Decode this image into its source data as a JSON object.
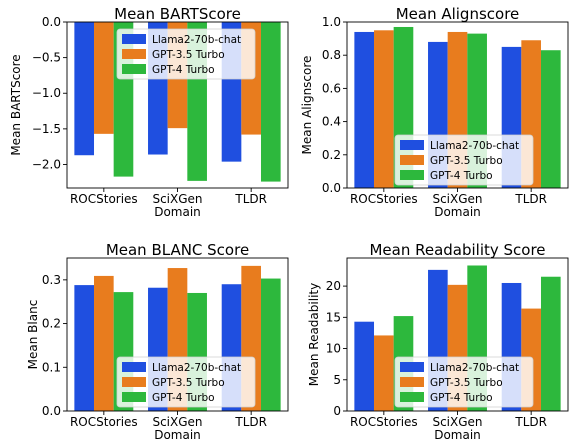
{
  "series_names": [
    "Llama2-70b-chat",
    "GPT-3.5 Turbo",
    "GPT-4 Turbo"
  ],
  "series_colors": [
    "#1f4fe0",
    "#e87c1e",
    "#2db83d"
  ],
  "chart_data": [
    {
      "type": "bar",
      "title": "Mean BARTScore",
      "xlabel": "Domain",
      "ylabel": "Mean BARTScore",
      "categories": [
        "ROCStories",
        "SciXGen",
        "TLDR"
      ],
      "ylim": [
        -2.33,
        0.0
      ],
      "yticks": [
        0.0,
        -0.5,
        -1.0,
        -1.5,
        -2.0
      ],
      "ytick_labels": [
        "0.0",
        "−0.5",
        "−1.0",
        "−1.5",
        "−2.0"
      ],
      "legend": "top-right",
      "series": [
        {
          "name": "Llama2-70b-chat",
          "values": [
            -1.87,
            -1.86,
            -1.96
          ]
        },
        {
          "name": "GPT-3.5 Turbo",
          "values": [
            -1.57,
            -1.49,
            -1.58
          ]
        },
        {
          "name": "GPT-4 Turbo",
          "values": [
            -2.17,
            -2.23,
            -2.24
          ]
        }
      ]
    },
    {
      "type": "bar",
      "title": "Mean Alignscore",
      "xlabel": "Domain",
      "ylabel": "Mean Alignscore",
      "categories": [
        "ROCStories",
        "SciXGen",
        "TLDR"
      ],
      "ylim": [
        0.0,
        1.0
      ],
      "yticks": [
        0.0,
        0.2,
        0.4,
        0.6,
        0.8,
        1.0
      ],
      "ytick_labels": [
        "0.0",
        "0.2",
        "0.4",
        "0.6",
        "0.8",
        "1.0"
      ],
      "legend": "bottom-right",
      "series": [
        {
          "name": "Llama2-70b-chat",
          "values": [
            0.94,
            0.88,
            0.85
          ]
        },
        {
          "name": "GPT-3.5 Turbo",
          "values": [
            0.95,
            0.94,
            0.89
          ]
        },
        {
          "name": "GPT-4 Turbo",
          "values": [
            0.97,
            0.93,
            0.83
          ]
        }
      ]
    },
    {
      "type": "bar",
      "title": "Mean BLANC Score",
      "xlabel": "Domain",
      "ylabel": "Mean Blanc",
      "categories": [
        "ROCStories",
        "SciXGen",
        "TLDR"
      ],
      "ylim": [
        0.0,
        0.35
      ],
      "yticks": [
        0.0,
        0.1,
        0.2,
        0.3
      ],
      "ytick_labels": [
        "0.0",
        "0.1",
        "0.2",
        "0.3"
      ],
      "legend": "bottom-right",
      "series": [
        {
          "name": "Llama2-70b-chat",
          "values": [
            0.288,
            0.282,
            0.29
          ]
        },
        {
          "name": "GPT-3.5 Turbo",
          "values": [
            0.309,
            0.327,
            0.332
          ]
        },
        {
          "name": "GPT-4 Turbo",
          "values": [
            0.272,
            0.27,
            0.303
          ]
        }
      ]
    },
    {
      "type": "bar",
      "title": "Mean Readability Score",
      "xlabel": "Domain",
      "ylabel": "Mean Readability",
      "categories": [
        "ROCStories",
        "SciXGen",
        "TLDR"
      ],
      "ylim": [
        0.0,
        24.5
      ],
      "yticks": [
        0,
        5,
        10,
        15,
        20
      ],
      "ytick_labels": [
        "0",
        "5",
        "10",
        "15",
        "20"
      ],
      "legend": "bottom-right",
      "series": [
        {
          "name": "Llama2-70b-chat",
          "values": [
            14.3,
            22.6,
            20.5
          ]
        },
        {
          "name": "GPT-3.5 Turbo",
          "values": [
            12.1,
            20.2,
            16.4
          ]
        },
        {
          "name": "GPT-4 Turbo",
          "values": [
            15.2,
            23.3,
            21.5
          ]
        }
      ]
    }
  ]
}
